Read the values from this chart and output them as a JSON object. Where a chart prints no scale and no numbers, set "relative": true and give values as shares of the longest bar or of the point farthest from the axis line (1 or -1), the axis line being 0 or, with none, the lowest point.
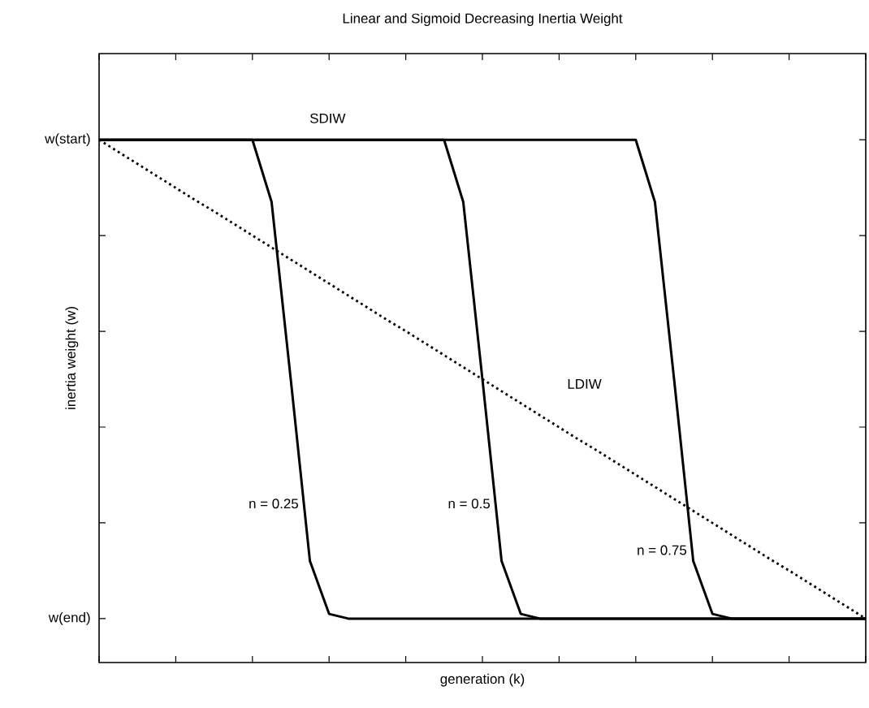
{
  "chart_data": {
    "type": "line",
    "title": "Linear and Sigmoid Decreasing Inertia Weight",
    "xlabel": "generation (k)",
    "ylabel": "inertia weight (w)",
    "categories": [
      null,
      null,
      null,
      null,
      null,
      null,
      null,
      null,
      null,
      null,
      null,
      null,
      null,
      null,
      null,
      null,
      null,
      null,
      null,
      null,
      null,
      null,
      null,
      null,
      null,
      null,
      null,
      null,
      null,
      null,
      null,
      null,
      null,
      null,
      null,
      null,
      null,
      null,
      null,
      null,
      null
    ],
    "series": [
      {
        "name": "n = 0.25",
        "color": "#000000",
        "line_style": "solid",
        "values": [
          1,
          1,
          1,
          1,
          1,
          1,
          1,
          1,
          1,
          0.881,
          0.542,
          0.194,
          0.093,
          0.084,
          0.084,
          0.084,
          0.084,
          0.084,
          0.084,
          0.084,
          0.084,
          0.084,
          0.084,
          0.084,
          0.084,
          0.084,
          0.084,
          0.084,
          0.084,
          0.084,
          0.084,
          0.084,
          0.084,
          0.084,
          0.084,
          0.084,
          0.084,
          0.084,
          0.084,
          0.084,
          0.084
        ]
      },
      {
        "name": "n = 0.5",
        "color": "#000000",
        "line_style": "solid",
        "values": [
          1,
          1,
          1,
          1,
          1,
          1,
          1,
          1,
          1,
          1,
          1,
          1,
          1,
          1,
          1,
          1,
          1,
          1,
          1,
          0.881,
          0.542,
          0.194,
          0.093,
          0.084,
          0.084,
          0.084,
          0.084,
          0.084,
          0.084,
          0.084,
          0.084,
          0.084,
          0.084,
          0.084,
          0.084,
          0.084,
          0.084,
          0.084,
          0.084,
          0.084,
          0.084
        ]
      },
      {
        "name": "n = 0.75",
        "color": "#000000",
        "line_style": "solid",
        "values": [
          1,
          1,
          1,
          1,
          1,
          1,
          1,
          1,
          1,
          1,
          1,
          1,
          1,
          1,
          1,
          1,
          1,
          1,
          1,
          1,
          1,
          1,
          1,
          1,
          1,
          1,
          1,
          1,
          1,
          0.881,
          0.542,
          0.194,
          0.093,
          0.084,
          0.084,
          0.084,
          0.084,
          0.084,
          0.084,
          0.084,
          0.084
        ]
      },
      {
        "name": "LDIW",
        "color": "#000000",
        "line_style": "dotted",
        "values": [
          1,
          0.977,
          0.954,
          0.931,
          0.908,
          0.885,
          0.863,
          0.84,
          0.817,
          0.794,
          0.771,
          0.748,
          0.725,
          0.702,
          0.679,
          0.656,
          0.634,
          0.611,
          0.588,
          0.565,
          0.542,
          0.519,
          0.496,
          0.473,
          0.45,
          0.427,
          0.405,
          0.382,
          0.359,
          0.336,
          0.313,
          0.29,
          0.267,
          0.244,
          0.221,
          0.198,
          0.176,
          0.153,
          0.13,
          0.107,
          0.084
        ]
      }
    ],
    "relative": true,
    "annotations": [
      "SDIW",
      "w(start)",
      "w(end)"
    ],
    "grid": false,
    "legend": false,
    "marker": "none"
  }
}
